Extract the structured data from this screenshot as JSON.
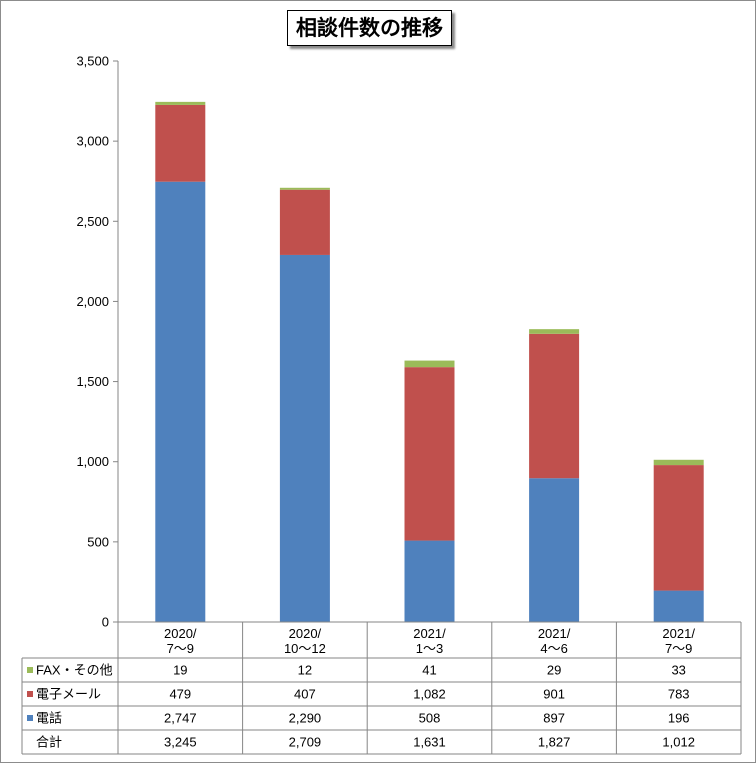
{
  "chart_data": {
    "type": "bar",
    "stacked": true,
    "title": "相談件数の推移",
    "categories": [
      [
        "2020/",
        "7～9"
      ],
      [
        "2020/",
        "10～12"
      ],
      [
        "2021/",
        "1～3"
      ],
      [
        "2021/",
        "4～6"
      ],
      [
        "2021/",
        "7～9"
      ]
    ],
    "series": [
      {
        "name": "電話",
        "color": "#4f81bd",
        "values": [
          2747,
          2290,
          508,
          897,
          196
        ]
      },
      {
        "name": "電子メール",
        "color": "#c0504d",
        "values": [
          479,
          407,
          1082,
          901,
          783
        ]
      },
      {
        "name": "FAX・その他",
        "color": "#9bbb59",
        "values": [
          19,
          12,
          41,
          29,
          33
        ]
      }
    ],
    "table_rows": [
      {
        "label": "FAX・その他",
        "color": "#9bbb59",
        "values": [
          "19",
          "12",
          "41",
          "29",
          "33"
        ]
      },
      {
        "label": "電子メール",
        "color": "#c0504d",
        "values": [
          "479",
          "407",
          "1,082",
          "901",
          "783"
        ]
      },
      {
        "label": "電話",
        "color": "#4f81bd",
        "values": [
          "2,747",
          "2,290",
          "508",
          "897",
          "196"
        ]
      },
      {
        "label": "合計",
        "color": "",
        "values": [
          "3,245",
          "2,709",
          "1,631",
          "1,827",
          "1,012"
        ]
      }
    ],
    "yticks": [
      "0",
      "500",
      "1,000",
      "1,500",
      "2,000",
      "2,500",
      "3,000",
      "3,500"
    ],
    "ylim": [
      0,
      3500
    ],
    "grid": false,
    "legend": "data-table"
  }
}
